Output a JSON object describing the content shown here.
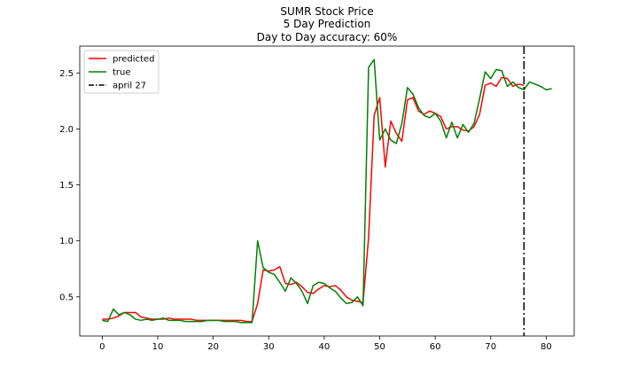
{
  "chart_data": {
    "type": "line",
    "title_lines": [
      "SUMR Stock Price",
      "5 Day Prediction",
      "Day to Day accuracy: 60%"
    ],
    "xlabel": "",
    "ylabel": "",
    "xlim": [
      -4.05,
      85.05
    ],
    "ylim": [
      0.15,
      2.74
    ],
    "x_ticks": [
      0,
      10,
      20,
      30,
      40,
      50,
      60,
      70,
      80
    ],
    "y_ticks": [
      0.5,
      1.0,
      1.5,
      2.0,
      2.5
    ],
    "y_tick_labels": [
      "0.5",
      "1.0",
      "1.5",
      "2.0",
      "2.5"
    ],
    "grid": false,
    "legend_position": "upper-left",
    "series": [
      {
        "name": "predicted",
        "color": "#ff0000",
        "x": [
          0,
          1,
          2,
          3,
          4,
          5,
          6,
          7,
          8,
          9,
          10,
          11,
          12,
          13,
          14,
          15,
          16,
          17,
          18,
          19,
          20,
          21,
          22,
          23,
          24,
          25,
          26,
          27,
          28,
          29,
          30,
          31,
          32,
          33,
          34,
          35,
          36,
          37,
          38,
          39,
          40,
          41,
          42,
          43,
          44,
          45,
          46,
          47,
          48,
          49,
          50,
          51,
          52,
          53,
          54,
          55,
          56,
          57,
          58,
          59,
          60,
          61,
          62,
          63,
          64,
          65,
          66,
          67,
          68,
          69,
          70,
          71,
          72,
          73,
          74,
          75,
          76
        ],
        "y": [
          0.3,
          0.3,
          0.31,
          0.33,
          0.36,
          0.36,
          0.36,
          0.32,
          0.31,
          0.3,
          0.3,
          0.3,
          0.31,
          0.3,
          0.3,
          0.3,
          0.3,
          0.29,
          0.29,
          0.29,
          0.29,
          0.29,
          0.29,
          0.29,
          0.29,
          0.29,
          0.28,
          0.28,
          0.44,
          0.74,
          0.73,
          0.74,
          0.77,
          0.62,
          0.61,
          0.63,
          0.59,
          0.54,
          0.53,
          0.57,
          0.6,
          0.59,
          0.6,
          0.56,
          0.5,
          0.47,
          0.46,
          0.45,
          1.03,
          2.12,
          2.28,
          1.66,
          2.07,
          1.96,
          1.89,
          2.26,
          2.28,
          2.16,
          2.13,
          2.16,
          2.14,
          2.11,
          2.0,
          2.02,
          2.02,
          1.99,
          1.98,
          2.02,
          2.13,
          2.39,
          2.41,
          2.38,
          2.46,
          2.45,
          2.38,
          2.4,
          2.39
        ]
      },
      {
        "name": "true",
        "color": "#008000",
        "x": [
          0,
          1,
          2,
          3,
          4,
          5,
          6,
          7,
          8,
          9,
          10,
          11,
          12,
          13,
          14,
          15,
          16,
          17,
          18,
          19,
          20,
          21,
          22,
          23,
          24,
          25,
          26,
          27,
          28,
          29,
          30,
          31,
          32,
          33,
          34,
          35,
          36,
          37,
          38,
          39,
          40,
          41,
          42,
          43,
          44,
          45,
          46,
          47,
          48,
          49,
          50,
          51,
          52,
          53,
          54,
          55,
          56,
          57,
          58,
          59,
          60,
          61,
          62,
          63,
          64,
          65,
          66,
          67,
          68,
          69,
          70,
          71,
          72,
          73,
          74,
          75,
          76,
          77,
          78,
          79,
          80,
          81
        ],
        "y": [
          0.29,
          0.28,
          0.39,
          0.34,
          0.36,
          0.34,
          0.3,
          0.29,
          0.3,
          0.29,
          0.3,
          0.31,
          0.29,
          0.29,
          0.29,
          0.28,
          0.28,
          0.28,
          0.28,
          0.29,
          0.29,
          0.29,
          0.28,
          0.28,
          0.28,
          0.27,
          0.27,
          0.27,
          1.0,
          0.76,
          0.72,
          0.7,
          0.63,
          0.55,
          0.67,
          0.62,
          0.55,
          0.44,
          0.6,
          0.63,
          0.62,
          0.58,
          0.55,
          0.49,
          0.44,
          0.45,
          0.5,
          0.42,
          2.55,
          2.62,
          1.9,
          2.0,
          1.9,
          1.87,
          2.05,
          2.37,
          2.31,
          2.19,
          2.12,
          2.1,
          2.14,
          2.07,
          1.92,
          2.06,
          1.92,
          2.04,
          1.97,
          2.05,
          2.27,
          2.51,
          2.45,
          2.53,
          2.52,
          2.38,
          2.42,
          2.37,
          2.35,
          2.42,
          2.4,
          2.38,
          2.35,
          2.36
        ]
      }
    ],
    "vline": {
      "name": "april 27",
      "x": 76,
      "color": "#000000",
      "style": "dash-dot"
    }
  }
}
